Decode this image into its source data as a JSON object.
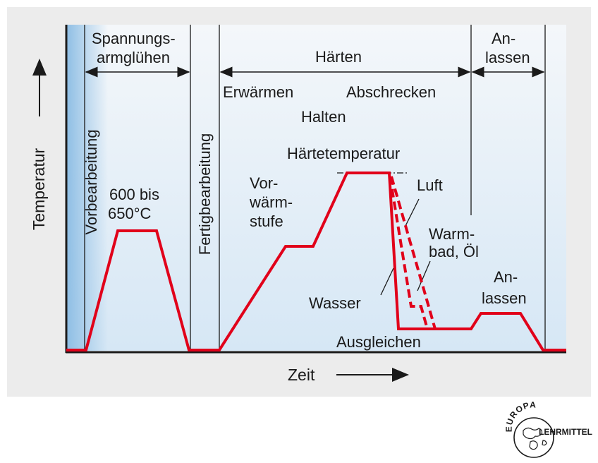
{
  "axes": {
    "y_label": "Temperatur",
    "x_label": "Zeit"
  },
  "phases": {
    "spannungsarmgluehen": [
      "Spannungs-",
      "armglühen"
    ],
    "haerten": "Härten",
    "anlassen_top": [
      "An-",
      "lassen"
    ]
  },
  "vertical_labels": {
    "vorbearbeitung": "Vorbearbeitung",
    "fertigbearbeitung": "Fertigbearbeitung"
  },
  "annotations": {
    "temp_600": [
      "600 bis",
      "650°C"
    ],
    "erwaermen": "Erwärmen",
    "halten": "Halten",
    "abschrecken": "Abschrecken",
    "haertetemperatur": "Härtetemperatur",
    "vorwaermstufe": [
      "Vor-",
      "wärm-",
      "stufe"
    ],
    "luft": "Luft",
    "warmbad_oel": [
      "Warm-",
      "bad, Öl"
    ],
    "wasser": "Wasser",
    "ausgleichen": "Ausgleichen",
    "anlassen_curve": [
      "An-",
      "lassen"
    ]
  },
  "logo": {
    "top": "EUROPA",
    "right": "LEHRMITTEL"
  },
  "colors": {
    "curve": "#e1001a",
    "panel": "#ececec",
    "plot_top": "#eef3f8",
    "plot_blue_edge": "#9cc3e4",
    "line": "#1a1a1a"
  }
}
